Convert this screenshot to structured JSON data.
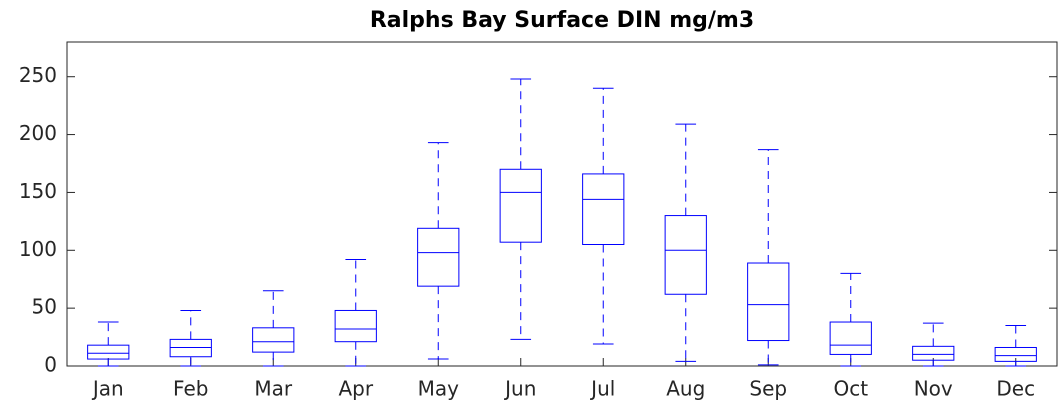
{
  "chart_data": {
    "type": "box",
    "title": "Ralphs Bay Surface DIN mg/m3",
    "categories": [
      "Jan",
      "Feb",
      "Mar",
      "Apr",
      "May",
      "Jun",
      "Jul",
      "Aug",
      "Sep",
      "Oct",
      "Nov",
      "Dec"
    ],
    "low": [
      0,
      0,
      0,
      0,
      6,
      23,
      19,
      4,
      1,
      0,
      0,
      0
    ],
    "q1": [
      6,
      8,
      12,
      21,
      69,
      107,
      105,
      62,
      22,
      10,
      5,
      4
    ],
    "median": [
      11,
      16,
      21,
      32,
      98,
      150,
      144,
      100,
      53,
      18,
      10,
      9
    ],
    "q3": [
      18,
      23,
      33,
      48,
      119,
      170,
      166,
      130,
      89,
      38,
      17,
      16
    ],
    "high": [
      38,
      48,
      65,
      92,
      193,
      248,
      240,
      209,
      187,
      80,
      37,
      35
    ],
    "color": "#0000ff",
    "ylim": [
      0,
      280
    ],
    "yticks": [
      0,
      50,
      100,
      150,
      200,
      250
    ]
  }
}
